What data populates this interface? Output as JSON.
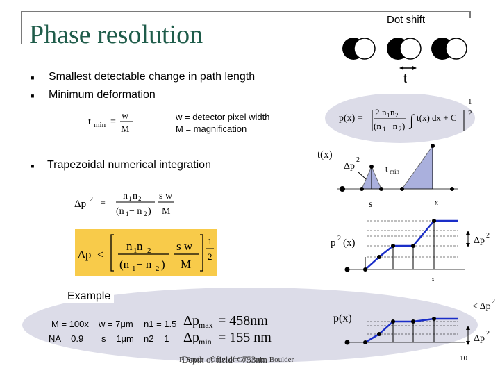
{
  "slide": {
    "title": "Phase resolution",
    "dot_shift_label": "Dot shift",
    "t_label": "t",
    "page_number": "10",
    "footer_overlap_a": "Depth of field = 753nm",
    "footer_overlap_b": "P. Sauer - Univ. of Colorado, Boulder"
  },
  "bullets": [
    "Smallest detectable change in path length",
    "Minimum deformation",
    "Trapezoidal numerical integration"
  ],
  "tmin_formula": {
    "lhs": "t",
    "sub": "min",
    "eq": "=",
    "num": "w",
    "den": "M"
  },
  "definitions": [
    "w = detector pixel width",
    "M = magnification"
  ],
  "p_formula": {
    "lhs": "p(x) =",
    "num_prefix": "2",
    "num_n1": "n",
    "num_n1_sub": "1",
    "num_n2": "n",
    "num_n2_sub": "2",
    "den": "(n",
    "den_1": "1",
    "den_minus": " − n",
    "den_2": "2",
    "den_close": ")",
    "integral_part": "t(x) dx + C",
    "power": "2",
    "power_top": "1"
  },
  "dp2_formula": {
    "lhs": "Δp",
    "exp": "2",
    "eq": "=",
    "num1": "n",
    "num1_sub": "1",
    "num2": "n",
    "num2_sub": "2",
    "den": "(n",
    "den_1": "1",
    "den_minus": " − n",
    "den_2": "2",
    "den_close": ")",
    "num_sw": "s w",
    "den_M": "M"
  },
  "boxed_formula": {
    "lhs": "Δp",
    "lt": "<",
    "num": "n",
    "num_1": "1",
    "num_n": " n",
    "num_2": "2",
    "den": "(n",
    "den_1": "1",
    "den_minus": " − n",
    "den_2": "2",
    "den_close": ")",
    "sw": "s w",
    "M": "M",
    "pow_num": "1",
    "pow_den": "2"
  },
  "graph1": {
    "t_axis": "t(x)",
    "dp2": "Δp",
    "dp2_exp": "2",
    "tmin": "t",
    "tmin_sub": "min",
    "s_label": "s",
    "x_label": "x"
  },
  "graph2": {
    "p2_label": "p",
    "p2_exp": "2",
    "p2_arg": "(x)",
    "dp2": "Δp",
    "dp2_exp": "2",
    "x_label": "x"
  },
  "graph3": {
    "p_label": "p(x)",
    "lt_dp2": "< Δp",
    "lt_exp": "2",
    "dp2": "Δp",
    "dp2_exp": "2"
  },
  "example": {
    "label": "Example",
    "row1": [
      "M = 100x",
      "w = 7μm",
      "n1 = 1.5"
    ],
    "row2": [
      "NA = 0.9",
      "s = 1μm",
      "n2 = 1"
    ],
    "dpmax": "Δp",
    "dpmax_sub": "max",
    "dpmax_val": "= 458nm",
    "dpmin": "Δp",
    "dpmin_sub": "min",
    "dpmin_val": "= 155 nm"
  },
  "colors": {
    "title": "#1f5c4a",
    "formula_box": "#f8cb4a",
    "ellipse": "#dcdce8",
    "graph_line": "#1a2ec8",
    "triangle": "#aab0dd"
  }
}
